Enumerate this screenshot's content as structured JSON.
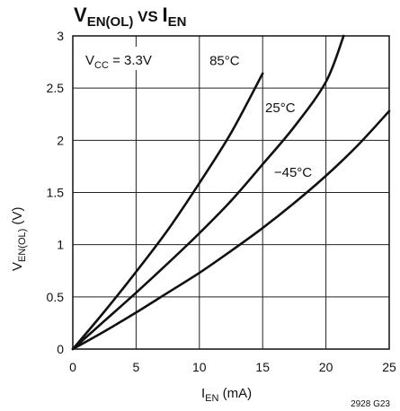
{
  "chart_data": {
    "type": "line",
    "title": {
      "main": "V",
      "main_sub": "EN(OL)",
      "vs": " VS ",
      "second": "I",
      "second_sub": "EN"
    },
    "xlabel": {
      "main": "I",
      "sub": "EN",
      "unit": " (mA)"
    },
    "ylabel": {
      "main": "V",
      "sub": "EN(OL)",
      "unit": " (V)"
    },
    "xlim": [
      0,
      25
    ],
    "ylim": [
      0,
      3
    ],
    "xticks": [
      0,
      5,
      10,
      15,
      20,
      25
    ],
    "yticks": [
      0,
      0.5,
      1,
      1.5,
      2,
      2.5,
      3
    ],
    "ytick_labels": [
      "0",
      "0.5",
      "1",
      "1.5",
      "2",
      "2.5",
      "3"
    ],
    "grid": true,
    "annotation": {
      "main": "V",
      "sub": "CC",
      "rest": " = 3.3V"
    },
    "series": [
      {
        "name": "85°C",
        "x": [
          0,
          2.5,
          5,
          7.5,
          10,
          12.5,
          15
        ],
        "y": [
          0,
          0.36,
          0.74,
          1.14,
          1.59,
          2.07,
          2.64
        ]
      },
      {
        "name": "25°C",
        "x": [
          0,
          2.5,
          5,
          7.5,
          10,
          12.5,
          15,
          17.5,
          20,
          21.4
        ],
        "y": [
          0,
          0.27,
          0.54,
          0.82,
          1.11,
          1.42,
          1.77,
          2.13,
          2.56,
          3.0
        ]
      },
      {
        "name": "−45°C",
        "x": [
          0,
          2.5,
          5,
          7.5,
          10,
          12.5,
          15,
          17.5,
          20,
          22.5,
          25
        ],
        "y": [
          0,
          0.17,
          0.35,
          0.54,
          0.73,
          0.94,
          1.16,
          1.4,
          1.66,
          1.95,
          2.28
        ]
      }
    ],
    "series_label_pos": [
      [
        10.8,
        2.72
      ],
      [
        15.2,
        2.27
      ],
      [
        15.9,
        1.65
      ]
    ],
    "figure_code": "2928 G23"
  }
}
